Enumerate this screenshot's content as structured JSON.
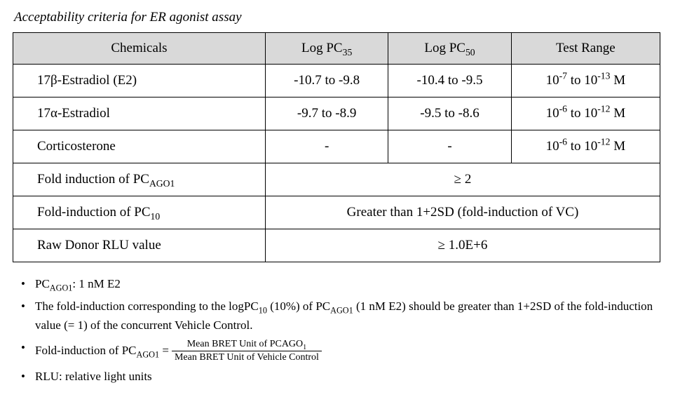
{
  "title": "Acceptability criteria for ER agonist assay",
  "headers": {
    "chem": "Chemicals",
    "pc35_prefix": "Log PC",
    "pc35_sub": "35",
    "pc50_prefix": "Log PC",
    "pc50_sub": "50",
    "range": "Test Range"
  },
  "rows": {
    "r1": {
      "chem": "17β-Estradiol (E2)",
      "pc35": "-10.7 to -9.8",
      "pc50": "-10.4 to -9.5",
      "range_a_sup": "-7",
      "range_mid": " to 10",
      "range_b_sup": "-13",
      "range_unit": " M"
    },
    "r2": {
      "chem": "17α-Estradiol",
      "pc35": "-9.7 to -8.9",
      "pc50": "-9.5 to -8.6",
      "range_a_sup": "-6",
      "range_mid": " to 10",
      "range_b_sup": "-12",
      "range_unit": " M"
    },
    "r3": {
      "chem": "Corticosterone",
      "pc35": "-",
      "pc50": "-",
      "range_a_sup": "-6",
      "range_mid": " to 10",
      "range_b_sup": "-12",
      "range_unit": " M"
    },
    "r4": {
      "chem_prefix": "Fold induction of PC",
      "chem_sub": "AGO1",
      "value": "≥ 2"
    },
    "r5": {
      "chem_prefix": "Fold-induction of PC",
      "chem_sub": "10",
      "value": "Greater than 1+2SD (fold-induction of VC)"
    },
    "r6": {
      "chem": "Raw Donor RLU value",
      "value": "≥ 1.0E+6"
    }
  },
  "notes": {
    "n1_prefix": "PC",
    "n1_sub": "AGO1",
    "n1_rest": ": 1 nM E2",
    "n2_a": "The fold-induction corresponding to the logPC",
    "n2_sub1": "10",
    "n2_b": " (10%) of PC",
    "n2_sub2": "AGO1",
    "n2_c": " (1 nM E2) should be greater than 1+2SD of the fold-induction value (= 1) of the concurrent Vehicle Control.",
    "n3_a": "Fold-induction of PC",
    "n3_sub": "AGO1",
    "n3_eq": " = ",
    "n3_num_a": "Mean BRET Unit of PCAGO",
    "n3_num_sub": "1",
    "n3_den": "Mean BRET Unit of Vehicle Control",
    "n4": "RLU: relative light units"
  },
  "style": {
    "background": "#ffffff",
    "header_bg": "#d9d9d9",
    "border": "#000000",
    "text": "#000000"
  }
}
